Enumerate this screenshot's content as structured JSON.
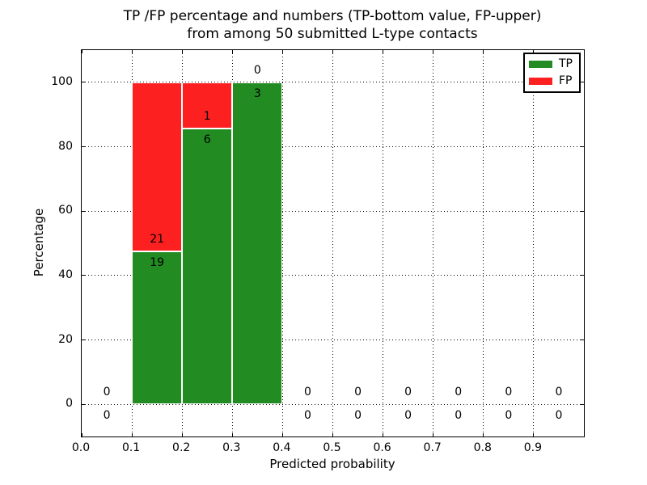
{
  "figure": {
    "title_line1": "TP /FP percentage and numbers (TP-bottom value, FP-upper)",
    "title_line2": "from among 50 submitted L-type contacts"
  },
  "axes": {
    "xlabel": "Predicted probability",
    "ylabel": "Percentage",
    "xlim": [
      0.0,
      1.0
    ],
    "ylim": [
      -10,
      110
    ],
    "xtick_values": [
      0.0,
      0.1,
      0.2,
      0.3,
      0.4,
      0.5,
      0.6,
      0.7,
      0.8,
      0.9
    ],
    "xtick_labels": [
      "0.0",
      "0.1",
      "0.2",
      "0.3",
      "0.4",
      "0.5",
      "0.6",
      "0.7",
      "0.8",
      "0.9"
    ],
    "ytick_values": [
      0,
      20,
      40,
      60,
      80,
      100
    ],
    "ytick_labels": [
      "0",
      "20",
      "40",
      "60",
      "80",
      "100"
    ],
    "grid_style": "dotted"
  },
  "legend": {
    "items": [
      {
        "label": "TP",
        "color": "#228b22"
      },
      {
        "label": "FP",
        "color": "#fc2020"
      }
    ]
  },
  "chart_data": {
    "type": "bar",
    "stacked": true,
    "title": "TP /FP percentage and numbers (TP-bottom value, FP-upper) from among 50 submitted L-type contacts",
    "xlabel": "Predicted probability",
    "ylabel": "Percentage",
    "xlim": [
      0.0,
      1.0
    ],
    "ylim": [
      -10,
      110
    ],
    "grid": true,
    "legend_position": "upper right",
    "bin_width": 0.1,
    "bin_centers": [
      0.05,
      0.15,
      0.25,
      0.35,
      0.45,
      0.55,
      0.65,
      0.75,
      0.85,
      0.95
    ],
    "total_contacts": 50,
    "series": [
      {
        "name": "TP",
        "color": "#228b22",
        "counts": [
          0,
          19,
          6,
          3,
          0,
          0,
          0,
          0,
          0,
          0
        ],
        "pct": [
          0,
          47.5,
          85.714,
          100,
          0,
          0,
          0,
          0,
          0,
          0
        ]
      },
      {
        "name": "FP",
        "color": "#fc2020",
        "counts": [
          0,
          21,
          1,
          0,
          0,
          0,
          0,
          0,
          0,
          0
        ],
        "pct": [
          0,
          52.5,
          14.286,
          0,
          0,
          0,
          0,
          0,
          0,
          0
        ]
      }
    ],
    "annotation_rule": "TP count just below TP/FP boundary, FP count just above"
  }
}
